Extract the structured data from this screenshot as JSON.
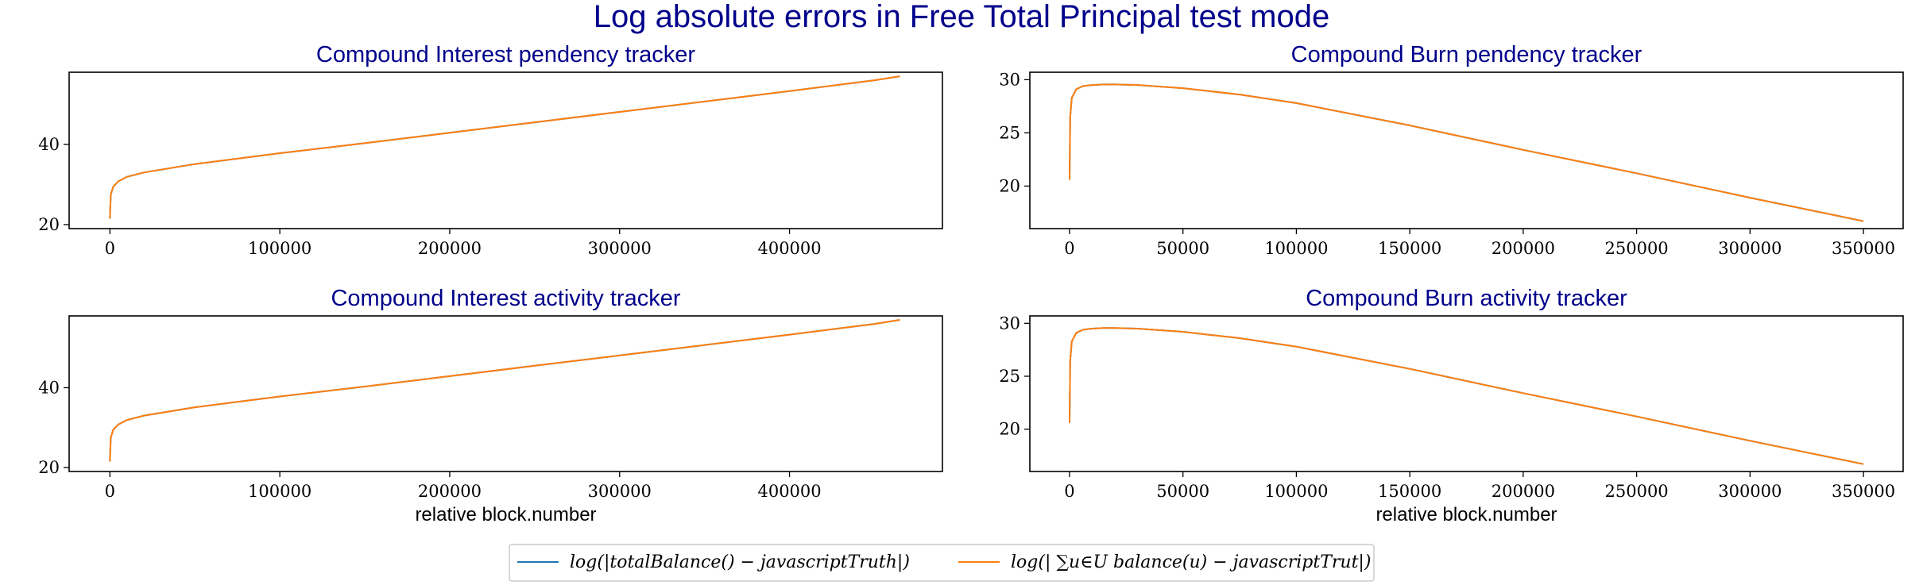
{
  "figure": {
    "title": "Log absolute errors in Free Total Principal test mode",
    "legend": [
      {
        "label": "log(|totalBalance() − javascriptTruth|)",
        "color": "#1f77b4"
      },
      {
        "label": "log(| ∑u∈U balance(u) − javascriptTrut|)",
        "color": "#ff7f0e"
      }
    ]
  },
  "chart_data": [
    {
      "type": "line",
      "title": "Compound Interest pendency tracker",
      "xlabel": "",
      "ylabel": "",
      "xlim": [
        -24000,
        490000
      ],
      "ylim": [
        19,
        58
      ],
      "xticks": [
        0,
        100000,
        200000,
        300000,
        400000
      ],
      "yticks": [
        20,
        40
      ],
      "series": [
        {
          "color": "#1f77b4",
          "x": [
            0,
            500,
            2000,
            5000,
            10000,
            20000,
            50000,
            100000,
            150000,
            200000,
            250000,
            300000,
            350000,
            400000,
            450000,
            465000
          ],
          "y": [
            21.5,
            27.5,
            29.5,
            30.8,
            31.9,
            33.0,
            35.1,
            37.8,
            40.3,
            42.9,
            45.5,
            48.1,
            50.7,
            53.3,
            56.0,
            57.0
          ]
        },
        {
          "color": "#ff7f0e",
          "x": [
            0,
            500,
            2000,
            5000,
            10000,
            20000,
            50000,
            100000,
            150000,
            200000,
            250000,
            300000,
            350000,
            400000,
            450000,
            465000
          ],
          "y": [
            21.5,
            27.5,
            29.5,
            30.8,
            31.9,
            33.0,
            35.1,
            37.8,
            40.3,
            42.9,
            45.5,
            48.1,
            50.7,
            53.3,
            56.0,
            57.0
          ]
        }
      ]
    },
    {
      "type": "line",
      "title": "Compound Burn pendency tracker",
      "xlabel": "",
      "ylabel": "",
      "xlim": [
        -17500,
        367500
      ],
      "ylim": [
        16,
        30.7
      ],
      "xticks": [
        0,
        50000,
        100000,
        150000,
        200000,
        250000,
        300000,
        350000
      ],
      "yticks": [
        20,
        25,
        30
      ],
      "series": [
        {
          "color": "#1f77b4",
          "x": [
            0,
            300,
            1000,
            3000,
            6000,
            10000,
            15000,
            20000,
            30000,
            50000,
            75000,
            100000,
            150000,
            200000,
            250000,
            300000,
            350000
          ],
          "y": [
            20.6,
            26.5,
            28.3,
            29.1,
            29.4,
            29.5,
            29.55,
            29.55,
            29.5,
            29.2,
            28.6,
            27.8,
            25.7,
            23.4,
            21.2,
            18.9,
            16.7
          ]
        },
        {
          "color": "#ff7f0e",
          "x": [
            0,
            300,
            1000,
            3000,
            6000,
            10000,
            15000,
            20000,
            30000,
            50000,
            75000,
            100000,
            150000,
            200000,
            250000,
            300000,
            350000
          ],
          "y": [
            20.6,
            26.5,
            28.3,
            29.1,
            29.4,
            29.5,
            29.55,
            29.55,
            29.5,
            29.2,
            28.6,
            27.8,
            25.7,
            23.4,
            21.2,
            18.9,
            16.7
          ]
        }
      ]
    },
    {
      "type": "line",
      "title": "Compound Interest activity tracker",
      "xlabel": "relative block.number",
      "ylabel": "",
      "xlim": [
        -24000,
        490000
      ],
      "ylim": [
        19,
        58
      ],
      "xticks": [
        0,
        100000,
        200000,
        300000,
        400000
      ],
      "yticks": [
        20,
        40
      ],
      "series": [
        {
          "color": "#1f77b4",
          "x": [
            0,
            500,
            2000,
            5000,
            10000,
            20000,
            50000,
            100000,
            150000,
            200000,
            250000,
            300000,
            350000,
            400000,
            450000,
            465000
          ],
          "y": [
            21.5,
            27.5,
            29.5,
            30.8,
            31.9,
            33.0,
            35.1,
            37.8,
            40.3,
            42.9,
            45.5,
            48.1,
            50.7,
            53.3,
            56.0,
            57.0
          ]
        },
        {
          "color": "#ff7f0e",
          "x": [
            0,
            500,
            2000,
            5000,
            10000,
            20000,
            50000,
            100000,
            150000,
            200000,
            250000,
            300000,
            350000,
            400000,
            450000,
            465000
          ],
          "y": [
            21.5,
            27.5,
            29.5,
            30.8,
            31.9,
            33.0,
            35.1,
            37.8,
            40.3,
            42.9,
            45.5,
            48.1,
            50.7,
            53.3,
            56.0,
            57.0
          ]
        }
      ]
    },
    {
      "type": "line",
      "title": "Compound Burn activity tracker",
      "xlabel": "relative block.number",
      "ylabel": "",
      "xlim": [
        -17500,
        367500
      ],
      "ylim": [
        16,
        30.7
      ],
      "xticks": [
        0,
        50000,
        100000,
        150000,
        200000,
        250000,
        300000,
        350000
      ],
      "yticks": [
        20,
        25,
        30
      ],
      "series": [
        {
          "color": "#1f77b4",
          "x": [
            0,
            300,
            1000,
            3000,
            6000,
            10000,
            15000,
            20000,
            30000,
            50000,
            75000,
            100000,
            150000,
            200000,
            250000,
            300000,
            350000
          ],
          "y": [
            20.6,
            26.5,
            28.3,
            29.1,
            29.4,
            29.5,
            29.55,
            29.55,
            29.5,
            29.2,
            28.6,
            27.8,
            25.7,
            23.4,
            21.2,
            18.9,
            16.7
          ]
        },
        {
          "color": "#ff7f0e",
          "x": [
            0,
            300,
            1000,
            3000,
            6000,
            10000,
            15000,
            20000,
            30000,
            50000,
            75000,
            100000,
            150000,
            200000,
            250000,
            300000,
            350000
          ],
          "y": [
            20.6,
            26.5,
            28.3,
            29.1,
            29.4,
            29.5,
            29.55,
            29.55,
            29.5,
            29.2,
            28.6,
            27.8,
            25.7,
            23.4,
            21.2,
            18.9,
            16.7
          ]
        }
      ]
    }
  ]
}
